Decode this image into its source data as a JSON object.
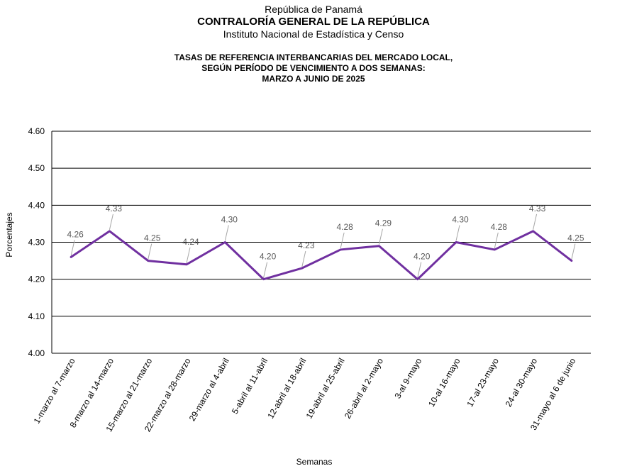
{
  "header": {
    "line1": "República de Panamá",
    "line2": "CONTRALORÍA GENERAL DE LA REPÚBLICA",
    "line3": "Instituto Nacional de Estadística y Censo"
  },
  "chart_data": {
    "type": "line",
    "title_lines": [
      "TASAS DE REFERENCIA INTERBANCARIAS DEL MERCADO LOCAL,",
      "SEGÚN PERÍODO DE VENCIMIENTO A DOS SEMANAS:",
      "MARZO A JUNIO DE 2025"
    ],
    "xlabel": "Semanas",
    "ylabel": "Porcentajes",
    "ylim": [
      4.0,
      4.6
    ],
    "yticks": [
      "4.00",
      "4.10",
      "4.20",
      "4.30",
      "4.40",
      "4.50",
      "4.60"
    ],
    "grid": true,
    "categories": [
      "1-marzo al 7-marzo",
      "8-marzo al 14-marzo",
      "15-marzo al 21-marzo",
      "22-marzo al 28-marzo",
      "29-marzo al 4-abril",
      "5-abril al 11-abril",
      "12-abril al 18-abril",
      "19-abril al 25-abril",
      "26-abril al 2-mayo",
      "3-al 9-mayo",
      "10-al 16-mayo",
      "17-al 23-mayo",
      "24-al 30-mayo",
      "31-mayo al 6 de junio"
    ],
    "values": [
      4.26,
      4.33,
      4.25,
      4.24,
      4.3,
      4.2,
      4.23,
      4.28,
      4.29,
      4.2,
      4.3,
      4.28,
      4.33,
      4.25
    ],
    "data_labels": [
      "4.26",
      "4.33",
      "4.25",
      "4.24",
      "4.30",
      "4.20",
      "4.23",
      "4.28",
      "4.29",
      "4.20",
      "4.30",
      "4.28",
      "4.33",
      "4.25"
    ],
    "line_color": "#7030A0",
    "grid_color": "#000000",
    "label_color": "#595959"
  }
}
